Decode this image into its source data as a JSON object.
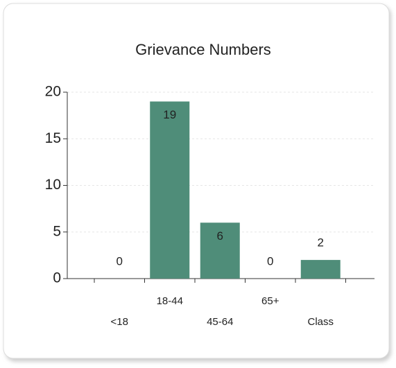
{
  "chart_data": {
    "type": "bar",
    "title": "Grievance Numbers",
    "categories": [
      "<18",
      "18-44",
      "45-64",
      "65+",
      "Class"
    ],
    "values": [
      0,
      19,
      6,
      0,
      2
    ],
    "color": "#4f8d79",
    "ylim": [
      0,
      20
    ],
    "yticks": [
      0,
      5,
      10,
      15,
      20
    ],
    "grid": true
  }
}
